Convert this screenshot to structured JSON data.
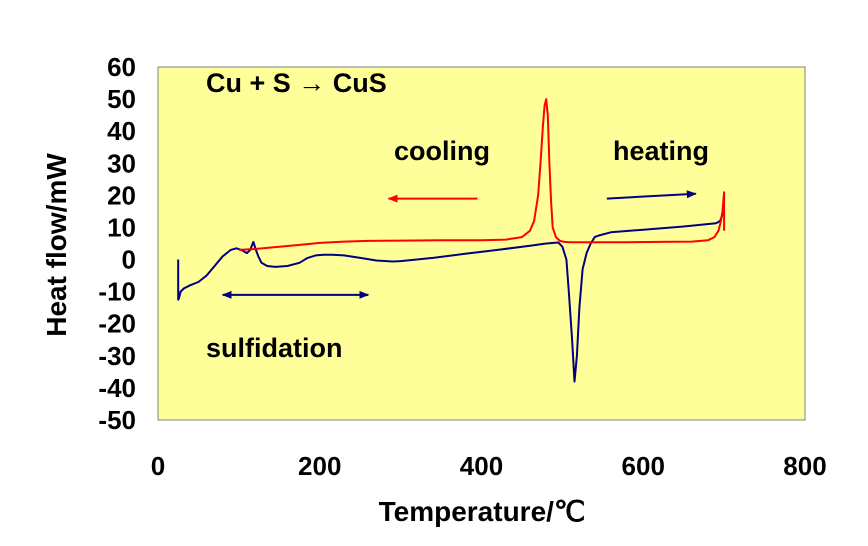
{
  "chart_data": {
    "type": "line",
    "title": "",
    "xlabel": "Temperature/℃",
    "ylabel": "Heat flow/mW",
    "xlim": [
      0,
      800
    ],
    "ylim": [
      -50,
      60
    ],
    "x_ticks": [
      0,
      200,
      400,
      600,
      800
    ],
    "y_ticks": [
      60,
      50,
      40,
      30,
      20,
      10,
      0,
      -10,
      -20,
      -30,
      -40,
      -50
    ],
    "grid": false,
    "background_color": "#ffff99",
    "annotations": {
      "reaction": "Cu + S → CuS",
      "cooling": "cooling",
      "heating": "heating",
      "sulfidation": "sulfidation"
    },
    "arrows": [
      {
        "label": "cooling",
        "color": "#ff0000",
        "from": [
          395,
          19
        ],
        "to": [
          285,
          19
        ]
      },
      {
        "label": "heating",
        "color": "#000080",
        "from": [
          555,
          19
        ],
        "to": [
          665,
          20.5
        ]
      },
      {
        "label": "sulfidation",
        "color": "#000080",
        "from": [
          80,
          -11
        ],
        "to": [
          260,
          -11
        ],
        "double": true
      }
    ],
    "series": [
      {
        "color": "#000080",
        "x": [
          25,
          25,
          26,
          28,
          32,
          40,
          50,
          60,
          70,
          80,
          90,
          97,
          103,
          110,
          114,
          118,
          121,
          124,
          128,
          135,
          145,
          160,
          175,
          185,
          195,
          205,
          215,
          230,
          250,
          270,
          290,
          300,
          340,
          380,
          420,
          460,
          480,
          495,
          500,
          505,
          508,
          512,
          515,
          518,
          521,
          525,
          530,
          535,
          540,
          545,
          560,
          600,
          650,
          690,
          695,
          698,
          700
        ],
        "y": [
          0,
          -12.5,
          -12,
          -10,
          -9,
          -8,
          -7,
          -5,
          -2,
          1,
          3,
          3.5,
          3,
          2,
          3,
          5.5,
          3,
          1,
          -1,
          -2,
          -2.3,
          -2,
          -1,
          0.5,
          1.3,
          1.5,
          1.5,
          1.3,
          0.5,
          -0.3,
          -0.6,
          -0.5,
          0.5,
          1.8,
          3,
          4.3,
          5,
          5.3,
          4,
          0,
          -10,
          -25,
          -38,
          -30,
          -15,
          -3,
          2,
          5,
          7,
          7.5,
          8.5,
          9.3,
          10.3,
          11.3,
          12,
          14,
          20
        ]
      },
      {
        "color": "#ff0000",
        "x": [
          100,
          120,
          150,
          180,
          200,
          230,
          260,
          300,
          350,
          400,
          430,
          450,
          460,
          465,
          470,
          473,
          476,
          478,
          480,
          482,
          484,
          486,
          488,
          492,
          497,
          502,
          510,
          540,
          580,
          620,
          660,
          680,
          688,
          693,
          696,
          698,
          699,
          700,
          700
        ],
        "y": [
          3,
          3.3,
          4,
          4.7,
          5.2,
          5.6,
          5.8,
          5.9,
          6,
          6,
          6.2,
          7,
          9,
          12,
          20,
          30,
          42,
          48,
          50,
          45,
          30,
          18,
          10,
          7,
          5.8,
          5.5,
          5.4,
          5.4,
          5.4,
          5.5,
          5.6,
          6,
          7,
          9,
          12,
          15,
          18,
          21,
          9
        ]
      }
    ]
  }
}
